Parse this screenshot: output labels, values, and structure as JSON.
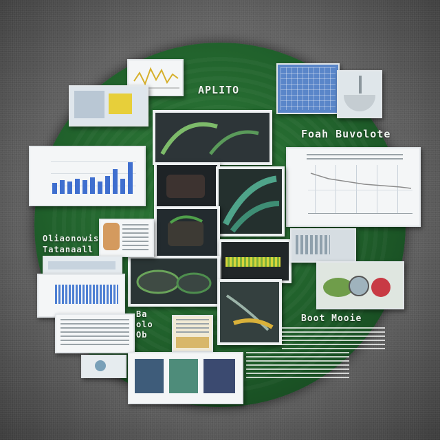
{
  "labels": {
    "top_label": "APLITO",
    "right_heading": "Foah Buvolote",
    "left_label_1": "Oliaonowis",
    "left_label_2": "Tatanaall",
    "center_left_label_1": "Ba",
    "center_left_label_2": "olo",
    "center_left_label_3": "Ob",
    "lower_right_label": "Boot Mooie"
  },
  "colors": {
    "disc_green": "#1f5e2a",
    "chart_blue": "#3f6fcf",
    "leaf_yellow": "#d8d53b"
  },
  "icons": {
    "leaf": "leaf-icon",
    "fruit": "fruit-icon",
    "bag": "bag-icon"
  }
}
